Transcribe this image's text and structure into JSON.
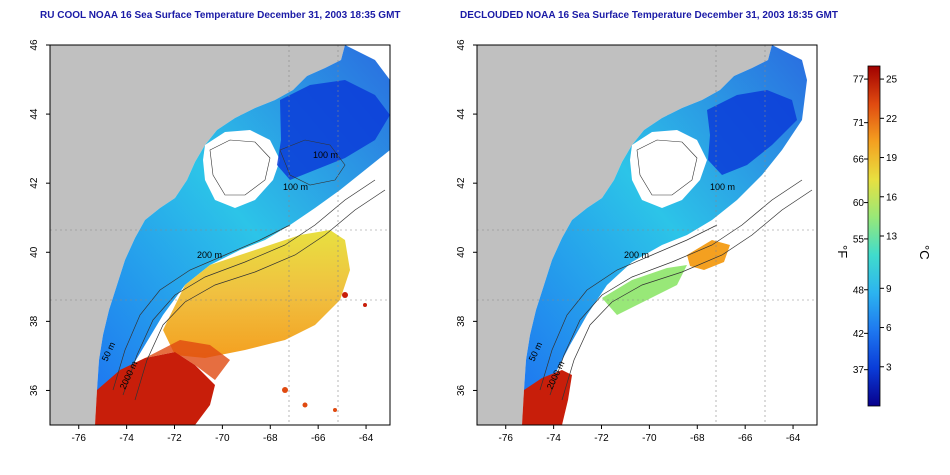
{
  "titles": {
    "left": "RU COOL NOAA 16 Sea Surface Temperature December 31, 2003 18:35 GMT",
    "right": "DECLOUDED NOAA 16 Sea Surface Temperature December 31, 2003 18:35 GMT"
  },
  "map": {
    "lon_range": [
      -77.2,
      -63.0
    ],
    "lat_range": [
      35.0,
      46.0
    ],
    "lon_ticks": [
      -76,
      -74,
      -72,
      -70,
      -68,
      -66,
      -64
    ],
    "lat_ticks": [
      36,
      38,
      40,
      42,
      44,
      46
    ],
    "lon_tick_labels": [
      "-76",
      "-74",
      "-72",
      "-70",
      "-68",
      "-66",
      "-64"
    ],
    "lat_tick_labels": [
      "36",
      "38",
      "40",
      "42",
      "44",
      "46"
    ],
    "land_color": "#c0c0c0",
    "grid": "dotted"
  },
  "contours": {
    "left": [
      "50 m",
      "2000 m",
      "200 m",
      "100 m",
      "100 m"
    ],
    "right": [
      "50 m",
      "2000 m",
      "200 m",
      "100 m"
    ]
  },
  "colorbar": {
    "fahrenheit_ticks": [
      "77",
      "71",
      "66",
      "60",
      "55",
      "48",
      "42",
      "37"
    ],
    "celsius_ticks": [
      "25",
      "22",
      "19",
      "16",
      "13",
      "9",
      "6",
      "3"
    ],
    "fahrenheit_label": "°F",
    "celsius_label": "°C",
    "range_c": [
      0,
      26
    ],
    "colors": [
      "#08008c",
      "#0a3cd8",
      "#1e78f0",
      "#2cb4f0",
      "#40dccc",
      "#98e878",
      "#e8e040",
      "#f4a020",
      "#e04a10",
      "#a00000"
    ]
  }
}
